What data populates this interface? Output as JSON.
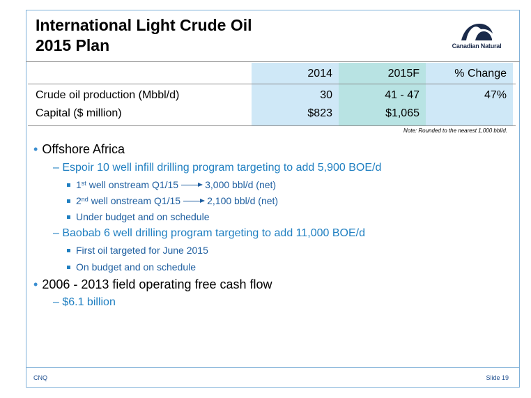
{
  "title": {
    "line1": "International Light Crude Oil",
    "line2": "2015 Plan"
  },
  "logo": {
    "text": "Canadian Natural",
    "icon": "canadian-natural-logo"
  },
  "table": {
    "headers": [
      "2014",
      "2015F",
      "% Change"
    ],
    "rows": [
      {
        "label": "Crude oil production (Mbbl/d)",
        "y2014": "30",
        "y2015": "41 - 47",
        "change": "47%"
      },
      {
        "label": "Capital ($ million)",
        "y2014": "$823",
        "y2015": "$1,065",
        "change": ""
      }
    ],
    "note": "Note: Rounded to the nearest 1,000 bbl/d."
  },
  "bullets": {
    "offshore_africa": "Offshore Africa",
    "espoir": "Espoir 10 well infill drilling program targeting to add 5,900 BOE/d",
    "espoir_items": [
      {
        "ord": "1",
        "sup": "st",
        "pre": " well onstream Q1/15",
        "post": "3,000 bbl/d (net)"
      },
      {
        "ord": "2",
        "sup": "nd",
        "pre": " well onstream Q1/15",
        "post": "2,100 bbl/d (net)"
      }
    ],
    "espoir_budget": "Under budget and on schedule",
    "baobab": "Baobab 6 well drilling program targeting to add 11,000 BOE/d",
    "baobab_items": [
      "First oil targeted for June 2015",
      "On budget and on schedule"
    ],
    "cash_flow": "2006 - 2013 field operating free cash flow",
    "cash_flow_value": "$6.1 billion"
  },
  "footer": {
    "left": "CNQ",
    "right": "Slide 19"
  },
  "colors": {
    "accent": "#1f7fc1",
    "header_light": "#cfe8f7",
    "header_teal": "#b8e3e3"
  }
}
